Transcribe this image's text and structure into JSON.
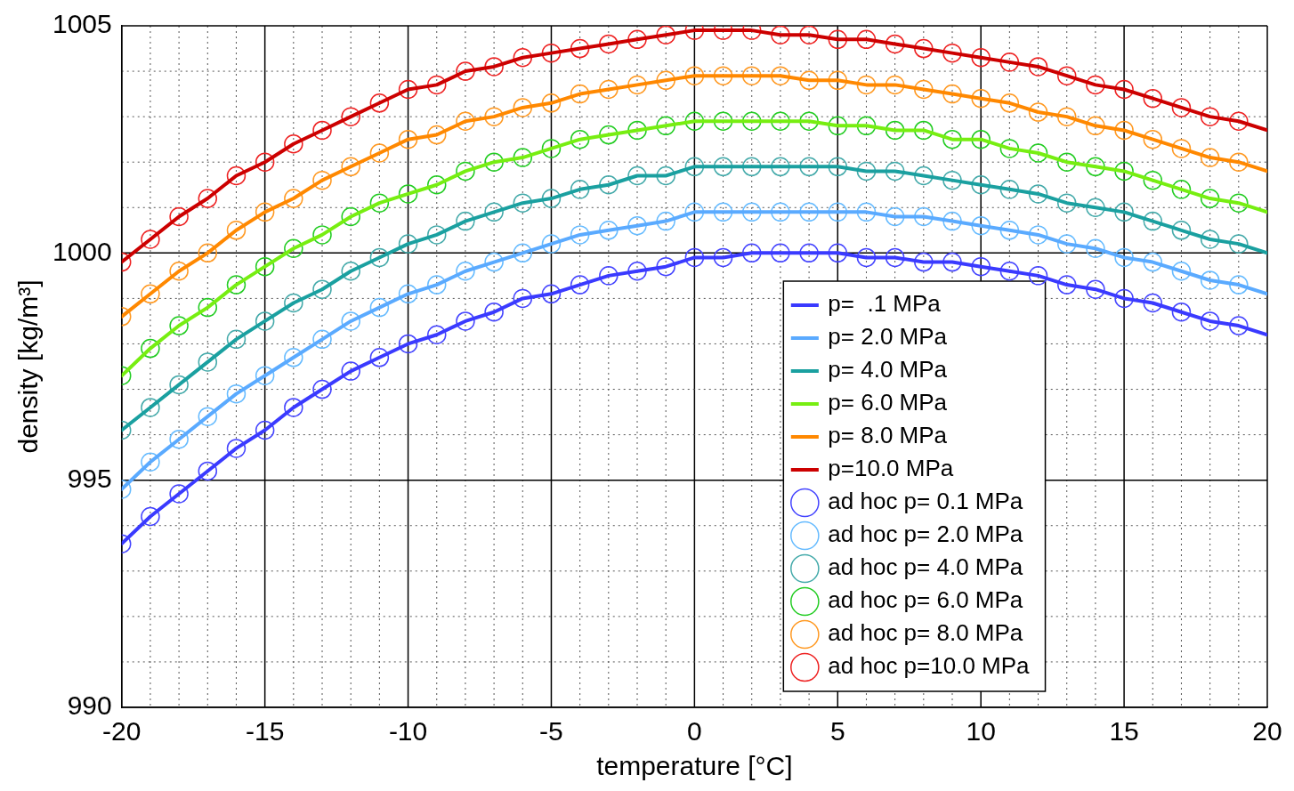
{
  "chart_data": {
    "type": "line",
    "xlabel": "temperature [°C]",
    "ylabel": "density [kg/m³]",
    "xlim": [
      -20,
      20
    ],
    "ylim": [
      990,
      1005
    ],
    "xticks": [
      -20,
      {
        "value": -19,
        "label": null
      },
      {
        "value": -18,
        "label": null
      },
      {
        "value": -17,
        "label": null
      },
      {
        "value": -16,
        "label": null
      },
      -15,
      {
        "value": -14,
        "label": null
      },
      {
        "value": -13,
        "label": null
      },
      {
        "value": -12,
        "label": null
      },
      {
        "value": -11,
        "label": null
      },
      -10,
      {
        "value": -9,
        "label": null
      },
      {
        "value": -8,
        "label": null
      },
      {
        "value": -7,
        "label": null
      },
      {
        "value": -6,
        "label": null
      },
      -5,
      {
        "value": -4,
        "label": null
      },
      {
        "value": -3,
        "label": null
      },
      {
        "value": -2,
        "label": null
      },
      {
        "value": -1,
        "label": null
      },
      0,
      {
        "value": 1,
        "label": null
      },
      {
        "value": 2,
        "label": null
      },
      {
        "value": 3,
        "label": null
      },
      {
        "value": 4,
        "label": null
      },
      5,
      {
        "value": 6,
        "label": null
      },
      {
        "value": 7,
        "label": null
      },
      {
        "value": 8,
        "label": null
      },
      {
        "value": 9,
        "label": null
      },
      10,
      {
        "value": 11,
        "label": null
      },
      {
        "value": 12,
        "label": null
      },
      {
        "value": 13,
        "label": null
      },
      {
        "value": 14,
        "label": null
      },
      15,
      {
        "value": 16,
        "label": null
      },
      {
        "value": 17,
        "label": null
      },
      {
        "value": 18,
        "label": null
      },
      {
        "value": 19,
        "label": null
      },
      20
    ],
    "yticks": [
      990,
      {
        "value": 991,
        "label": null
      },
      {
        "value": 992,
        "label": null
      },
      {
        "value": 993,
        "label": null
      },
      {
        "value": 994,
        "label": null
      },
      995,
      {
        "value": 996,
        "label": null
      },
      {
        "value": 997,
        "label": null
      },
      {
        "value": 998,
        "label": null
      },
      {
        "value": 999,
        "label": null
      },
      1000,
      {
        "value": 1001,
        "label": null
      },
      {
        "value": 1002,
        "label": null
      },
      {
        "value": 1003,
        "label": null
      },
      {
        "value": 1004,
        "label": null
      },
      1005
    ],
    "grid": true,
    "legend": "bottom right",
    "series": [
      {
        "name": "p=  .1 MPa",
        "type": "line",
        "marker": "none",
        "line_style": "solid",
        "color": "#3a3aff",
        "x": [
          -20,
          -19,
          -18,
          -17,
          -16,
          -15,
          -14,
          -13,
          -12,
          -11,
          -10,
          -9,
          -8,
          -7,
          -6,
          -5,
          -4,
          -3,
          -2,
          -1,
          0,
          1,
          2,
          3,
          4,
          5,
          6,
          7,
          8,
          9,
          10,
          11,
          12,
          13,
          14,
          15,
          16,
          17,
          18,
          19,
          20
        ],
        "values": [
          993.6,
          994.2,
          994.7,
          995.2,
          995.7,
          996.1,
          996.6,
          997.0,
          997.4,
          997.7,
          998.0,
          998.2,
          998.5,
          998.7,
          999.0,
          999.1,
          999.3,
          999.5,
          999.6,
          999.7,
          999.9,
          999.9,
          1000.0,
          1000.0,
          1000.0,
          1000.0,
          999.9,
          999.9,
          999.8,
          999.8,
          999.7,
          999.6,
          999.5,
          999.3,
          999.2,
          999.0,
          998.9,
          998.7,
          998.5,
          998.4,
          998.2
        ]
      },
      {
        "name": "p= 2.0 MPa",
        "type": "line",
        "marker": "none",
        "line_style": "solid",
        "color": "#5aaaff",
        "x": [
          -20,
          -19,
          -18,
          -17,
          -16,
          -15,
          -14,
          -13,
          -12,
          -11,
          -10,
          -9,
          -8,
          -7,
          -6,
          -5,
          -4,
          -3,
          -2,
          -1,
          0,
          1,
          2,
          3,
          4,
          5,
          6,
          7,
          8,
          9,
          10,
          11,
          12,
          13,
          14,
          15,
          16,
          17,
          18,
          19,
          20
        ],
        "values": [
          994.8,
          995.4,
          995.9,
          996.4,
          996.9,
          997.3,
          997.7,
          998.1,
          998.5,
          998.8,
          999.1,
          999.3,
          999.6,
          999.8,
          1000.0,
          1000.2,
          1000.4,
          1000.5,
          1000.6,
          1000.7,
          1000.9,
          1000.9,
          1000.9,
          1000.9,
          1000.9,
          1000.9,
          1000.9,
          1000.8,
          1000.8,
          1000.7,
          1000.6,
          1000.5,
          1000.4,
          1000.2,
          1000.1,
          999.9,
          999.8,
          999.6,
          999.4,
          999.3,
          999.1
        ]
      },
      {
        "name": "p= 4.0 MPa",
        "type": "line",
        "marker": "none",
        "line_style": "solid",
        "color": "#1aa0a0",
        "x": [
          -20,
          -19,
          -18,
          -17,
          -16,
          -15,
          -14,
          -13,
          -12,
          -11,
          -10,
          -9,
          -8,
          -7,
          -6,
          -5,
          -4,
          -3,
          -2,
          -1,
          0,
          1,
          2,
          3,
          4,
          5,
          6,
          7,
          8,
          9,
          10,
          11,
          12,
          13,
          14,
          15,
          16,
          17,
          18,
          19,
          20
        ],
        "values": [
          996.1,
          996.6,
          997.1,
          997.6,
          998.1,
          998.5,
          998.9,
          999.2,
          999.6,
          999.9,
          1000.2,
          1000.4,
          1000.7,
          1000.9,
          1001.1,
          1001.2,
          1001.4,
          1001.5,
          1001.7,
          1001.7,
          1001.9,
          1001.9,
          1001.9,
          1001.9,
          1001.9,
          1001.9,
          1001.8,
          1001.8,
          1001.7,
          1001.6,
          1001.5,
          1001.4,
          1001.3,
          1001.1,
          1001.0,
          1000.9,
          1000.7,
          1000.5,
          1000.3,
          1000.2,
          1000.0
        ]
      },
      {
        "name": "p= 6.0 MPa",
        "type": "line",
        "marker": "none",
        "line_style": "solid",
        "color": "#77ee11",
        "x": [
          -20,
          -19,
          -18,
          -17,
          -16,
          -15,
          -14,
          -13,
          -12,
          -11,
          -10,
          -9,
          -8,
          -7,
          -6,
          -5,
          -4,
          -3,
          -2,
          -1,
          0,
          1,
          2,
          3,
          4,
          5,
          6,
          7,
          8,
          9,
          10,
          11,
          12,
          13,
          14,
          15,
          16,
          17,
          18,
          19,
          20
        ],
        "values": [
          997.3,
          997.9,
          998.4,
          998.8,
          999.3,
          999.7,
          1000.1,
          1000.4,
          1000.8,
          1001.1,
          1001.3,
          1001.5,
          1001.8,
          1002.0,
          1002.1,
          1002.3,
          1002.5,
          1002.6,
          1002.7,
          1002.8,
          1002.9,
          1002.9,
          1002.9,
          1002.9,
          1002.9,
          1002.8,
          1002.8,
          1002.7,
          1002.7,
          1002.5,
          1002.5,
          1002.3,
          1002.2,
          1002.0,
          1001.9,
          1001.8,
          1001.6,
          1001.4,
          1001.2,
          1001.1,
          1000.9
        ]
      },
      {
        "name": "p= 8.0 MPa",
        "type": "line",
        "marker": "none",
        "line_style": "solid",
        "color": "#ff8800",
        "x": [
          -20,
          -19,
          -18,
          -17,
          -16,
          -15,
          -14,
          -13,
          -12,
          -11,
          -10,
          -9,
          -8,
          -7,
          -6,
          -5,
          -4,
          -3,
          -2,
          -1,
          0,
          1,
          2,
          3,
          4,
          5,
          6,
          7,
          8,
          9,
          10,
          11,
          12,
          13,
          14,
          15,
          16,
          17,
          18,
          19,
          20
        ],
        "values": [
          998.6,
          999.1,
          999.6,
          1000.0,
          1000.5,
          1000.9,
          1001.2,
          1001.6,
          1001.9,
          1002.2,
          1002.5,
          1002.6,
          1002.9,
          1003.0,
          1003.2,
          1003.3,
          1003.5,
          1003.6,
          1003.7,
          1003.8,
          1003.9,
          1003.9,
          1003.9,
          1003.9,
          1003.8,
          1003.8,
          1003.7,
          1003.7,
          1003.6,
          1003.5,
          1003.4,
          1003.3,
          1003.1,
          1003.0,
          1002.8,
          1002.7,
          1002.5,
          1002.3,
          1002.1,
          1002.0,
          1001.8
        ]
      },
      {
        "name": "p=10.0 MPa",
        "type": "line",
        "marker": "none",
        "line_style": "solid",
        "color": "#cc0000",
        "x": [
          -20,
          -19,
          -18,
          -17,
          -16,
          -15,
          -14,
          -13,
          -12,
          -11,
          -10,
          -9,
          -8,
          -7,
          -6,
          -5,
          -4,
          -3,
          -2,
          -1,
          0,
          1,
          2,
          3,
          4,
          5,
          6,
          7,
          8,
          9,
          10,
          11,
          12,
          13,
          14,
          15,
          16,
          17,
          18,
          19,
          20
        ],
        "values": [
          999.8,
          1000.3,
          1000.8,
          1001.2,
          1001.7,
          1002.0,
          1002.4,
          1002.7,
          1003.0,
          1003.3,
          1003.6,
          1003.7,
          1004.0,
          1004.1,
          1004.3,
          1004.4,
          1004.5,
          1004.6,
          1004.7,
          1004.8,
          1004.9,
          1004.9,
          1004.9,
          1004.8,
          1004.8,
          1004.7,
          1004.7,
          1004.6,
          1004.5,
          1004.4,
          1004.3,
          1004.2,
          1004.1,
          1003.9,
          1003.7,
          1003.6,
          1003.4,
          1003.2,
          1003.0,
          1002.9,
          1002.7
        ]
      },
      {
        "name": "ad hoc p= 0.1 MPa",
        "type": "scatter",
        "marker": "circle",
        "color": "#4444ff",
        "x": [
          -20,
          -19,
          -18,
          -17,
          -16,
          -15,
          -14,
          -13,
          -12,
          -11,
          -10,
          -9,
          -8,
          -7,
          -6,
          -5,
          -4,
          -3,
          -2,
          -1,
          0,
          1,
          2,
          3,
          4,
          5,
          6,
          7,
          8,
          9,
          10,
          11,
          12,
          13,
          14,
          15,
          16,
          17,
          18,
          19
        ],
        "values": [
          993.6,
          994.2,
          994.7,
          995.2,
          995.7,
          996.1,
          996.6,
          997.0,
          997.4,
          997.7,
          998.0,
          998.2,
          998.5,
          998.7,
          999.0,
          999.1,
          999.3,
          999.5,
          999.6,
          999.7,
          999.9,
          999.9,
          1000.0,
          1000.0,
          1000.0,
          1000.0,
          999.9,
          999.9,
          999.8,
          999.8,
          999.7,
          999.6,
          999.5,
          999.3,
          999.2,
          999.0,
          998.9,
          998.7,
          998.5,
          998.4
        ]
      },
      {
        "name": "ad hoc p= 2.0 MPa",
        "type": "scatter",
        "marker": "circle",
        "color": "#66bbff",
        "x": [
          -20,
          -19,
          -18,
          -17,
          -16,
          -15,
          -14,
          -13,
          -12,
          -11,
          -10,
          -9,
          -8,
          -7,
          -6,
          -5,
          -4,
          -3,
          -2,
          -1,
          0,
          1,
          2,
          3,
          4,
          5,
          6,
          7,
          8,
          9,
          10,
          11,
          12,
          13,
          14,
          15,
          16,
          17,
          18,
          19
        ],
        "values": [
          994.8,
          995.4,
          995.9,
          996.4,
          996.9,
          997.3,
          997.7,
          998.1,
          998.5,
          998.8,
          999.1,
          999.3,
          999.6,
          999.8,
          1000.0,
          1000.2,
          1000.4,
          1000.5,
          1000.6,
          1000.7,
          1000.9,
          1000.9,
          1000.9,
          1000.9,
          1000.9,
          1000.9,
          1000.9,
          1000.8,
          1000.8,
          1000.7,
          1000.6,
          1000.5,
          1000.4,
          1000.2,
          1000.1,
          999.9,
          999.8,
          999.6,
          999.4,
          999.3
        ]
      },
      {
        "name": "ad hoc p= 4.0 MPa",
        "type": "scatter",
        "marker": "circle",
        "color": "#44aaaa",
        "x": [
          -20,
          -19,
          -18,
          -17,
          -16,
          -15,
          -14,
          -13,
          -12,
          -11,
          -10,
          -9,
          -8,
          -7,
          -6,
          -5,
          -4,
          -3,
          -2,
          -1,
          0,
          1,
          2,
          3,
          4,
          5,
          6,
          7,
          8,
          9,
          10,
          11,
          12,
          13,
          14,
          15,
          16,
          17,
          18,
          19
        ],
        "values": [
          996.1,
          996.6,
          997.1,
          997.6,
          998.1,
          998.5,
          998.9,
          999.2,
          999.6,
          999.9,
          1000.2,
          1000.4,
          1000.7,
          1000.9,
          1001.1,
          1001.2,
          1001.4,
          1001.5,
          1001.7,
          1001.7,
          1001.9,
          1001.9,
          1001.9,
          1001.9,
          1001.9,
          1001.9,
          1001.8,
          1001.8,
          1001.7,
          1001.6,
          1001.5,
          1001.4,
          1001.3,
          1001.1,
          1001.0,
          1000.9,
          1000.7,
          1000.5,
          1000.3,
          1000.2
        ]
      },
      {
        "name": "ad hoc p= 6.0 MPa",
        "type": "scatter",
        "marker": "circle",
        "color": "#22cc22",
        "x": [
          -20,
          -19,
          -18,
          -17,
          -16,
          -15,
          -14,
          -13,
          -12,
          -11,
          -10,
          -9,
          -8,
          -7,
          -6,
          -5,
          -4,
          -3,
          -2,
          -1,
          0,
          1,
          2,
          3,
          4,
          5,
          6,
          7,
          8,
          9,
          10,
          11,
          12,
          13,
          14,
          15,
          16,
          17,
          18,
          19
        ],
        "values": [
          997.3,
          997.9,
          998.4,
          998.8,
          999.3,
          999.7,
          1000.1,
          1000.4,
          1000.8,
          1001.1,
          1001.3,
          1001.5,
          1001.8,
          1002.0,
          1002.1,
          1002.3,
          1002.5,
          1002.6,
          1002.7,
          1002.8,
          1002.9,
          1002.9,
          1002.9,
          1002.9,
          1002.9,
          1002.8,
          1002.8,
          1002.7,
          1002.7,
          1002.5,
          1002.5,
          1002.3,
          1002.2,
          1002.0,
          1001.9,
          1001.8,
          1001.6,
          1001.4,
          1001.2,
          1001.1
        ]
      },
      {
        "name": "ad hoc p= 8.0 MPa",
        "type": "scatter",
        "marker": "circle",
        "color": "#ff9922",
        "x": [
          -20,
          -19,
          -18,
          -17,
          -16,
          -15,
          -14,
          -13,
          -12,
          -11,
          -10,
          -9,
          -8,
          -7,
          -6,
          -5,
          -4,
          -3,
          -2,
          -1,
          0,
          1,
          2,
          3,
          4,
          5,
          6,
          7,
          8,
          9,
          10,
          11,
          12,
          13,
          14,
          15,
          16,
          17,
          18,
          19
        ],
        "values": [
          998.6,
          999.1,
          999.6,
          1000.0,
          1000.5,
          1000.9,
          1001.2,
          1001.6,
          1001.9,
          1002.2,
          1002.5,
          1002.6,
          1002.9,
          1003.0,
          1003.2,
          1003.3,
          1003.5,
          1003.6,
          1003.7,
          1003.8,
          1003.9,
          1003.9,
          1003.9,
          1003.9,
          1003.8,
          1003.8,
          1003.7,
          1003.7,
          1003.6,
          1003.5,
          1003.4,
          1003.3,
          1003.1,
          1003.0,
          1002.8,
          1002.7,
          1002.5,
          1002.3,
          1002.1,
          1002.0
        ]
      },
      {
        "name": "ad hoc p=10.0 MPa",
        "type": "scatter",
        "marker": "circle",
        "color": "#ee2222",
        "x": [
          -20,
          -19,
          -18,
          -17,
          -16,
          -15,
          -14,
          -13,
          -12,
          -11,
          -10,
          -9,
          -8,
          -7,
          -6,
          -5,
          -4,
          -3,
          -2,
          -1,
          0,
          1,
          2,
          3,
          4,
          5,
          6,
          7,
          8,
          9,
          10,
          11,
          12,
          13,
          14,
          15,
          16,
          17,
          18,
          19
        ],
        "values": [
          999.8,
          1000.3,
          1000.8,
          1001.2,
          1001.7,
          1002.0,
          1002.4,
          1002.7,
          1003.0,
          1003.3,
          1003.6,
          1003.7,
          1004.0,
          1004.1,
          1004.3,
          1004.4,
          1004.5,
          1004.6,
          1004.7,
          1004.8,
          1004.9,
          1004.9,
          1004.9,
          1004.8,
          1004.8,
          1004.7,
          1004.7,
          1004.6,
          1004.5,
          1004.4,
          1004.3,
          1004.2,
          1004.1,
          1003.9,
          1003.7,
          1003.6,
          1003.4,
          1003.2,
          1003.0,
          1002.9
        ]
      }
    ]
  }
}
